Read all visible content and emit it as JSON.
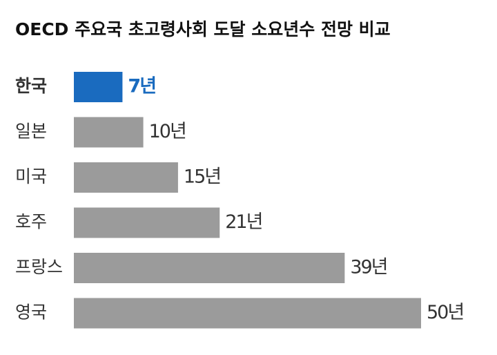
{
  "chart_data": {
    "type": "bar",
    "orientation": "horizontal",
    "title": "OECD 주요국 초고령사회 도달 소요년수 전망 비교",
    "categories": [
      "한국",
      "일본",
      "미국",
      "호주",
      "프랑스",
      "영국"
    ],
    "values": [
      7,
      10,
      15,
      21,
      39,
      50
    ],
    "value_labels": [
      "7년",
      "10년",
      "15년",
      "21년",
      "39년",
      "50년"
    ],
    "colors": [
      "#1a6bbf",
      "#9b9b9b",
      "#9b9b9b",
      "#9b9b9b",
      "#9b9b9b",
      "#9b9b9b"
    ],
    "label_colors": [
      "#1a6bbf",
      "#333333",
      "#333333",
      "#333333",
      "#333333",
      "#333333"
    ]
  }
}
